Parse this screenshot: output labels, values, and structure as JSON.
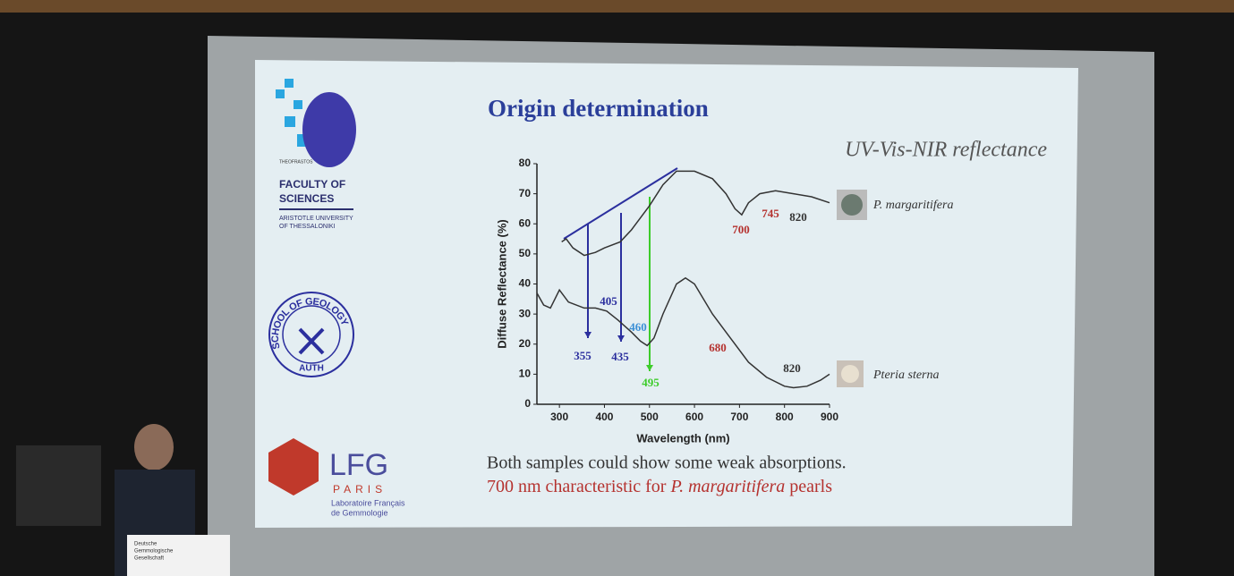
{
  "slide": {
    "title": "Origin determination",
    "subtitle": "UV-Vis-NIR reflectance",
    "auth_logo": {
      "mark": "THEOFRASTOS",
      "line1": "FACULTY OF",
      "line2": "SCIENCES",
      "line3": "ARISTOTLE UNIVERSITY",
      "line4": "OF THESSALONIKI"
    },
    "geology_logo": {
      "ring": "SCHOOL OF GEOLOGY",
      "bottom": "AUTH"
    },
    "lfg_logo": {
      "name": "LFG",
      "city": "PARIS",
      "line1": "Laboratoire Français",
      "line2": "de Gemmologie"
    },
    "caption": {
      "line1": "Both samples could show some weak absorptions.",
      "line2_start": "700 nm characteristic for ",
      "line2_italic": "P. margaritifera",
      "line2_end": " pearls"
    },
    "lectern": {
      "line1": "Deutsche",
      "line2": "Gemmologische",
      "line3": "Gesellschaft"
    }
  },
  "chart_data": {
    "type": "line",
    "xlabel": "Wavelength (nm)",
    "ylabel": "Diffuse Reflectance (%)",
    "xlim": [
      250,
      900
    ],
    "ylim": [
      0,
      80
    ],
    "xticks": [
      300,
      400,
      500,
      600,
      700,
      800,
      900
    ],
    "yticks": [
      0,
      10,
      20,
      30,
      40,
      50,
      60,
      70,
      80
    ],
    "series": [
      {
        "name": "P. margaritifera",
        "color": "#333333",
        "x": [
          305,
          315,
          330,
          355,
          380,
          400,
          435,
          460,
          500,
          530,
          560,
          600,
          640,
          670,
          690,
          705,
          720,
          745,
          780,
          820,
          860,
          900
        ],
        "values": [
          54,
          55,
          52,
          49.5,
          50.5,
          52,
          54,
          58,
          66,
          73,
          77.5,
          77.5,
          75,
          70,
          65,
          63,
          67,
          70,
          71,
          70,
          69,
          67
        ]
      },
      {
        "name": "Pteria sterna",
        "color": "#333333",
        "x": [
          250,
          265,
          280,
          300,
          320,
          355,
          380,
          405,
          430,
          460,
          480,
          495,
          510,
          530,
          560,
          580,
          600,
          640,
          680,
          720,
          760,
          800,
          820,
          850,
          880,
          900
        ],
        "values": [
          37,
          33,
          32,
          38,
          34,
          32,
          32,
          31,
          28,
          24,
          21,
          19.5,
          22,
          30,
          40,
          42,
          40,
          30,
          22,
          14,
          9,
          6,
          5.5,
          6,
          8,
          10
        ]
      }
    ],
    "annotations": [
      {
        "text": "355",
        "color": "#2b2f9e"
      },
      {
        "text": "405",
        "color": "#2b2f9e"
      },
      {
        "text": "435",
        "color": "#2b2f9e"
      },
      {
        "text": "460",
        "color": "#3a8fd6"
      },
      {
        "text": "495",
        "color": "#3dcc2b"
      },
      {
        "text": "680",
        "color": "#b5322f"
      },
      {
        "text": "700",
        "color": "#b5322f"
      },
      {
        "text": "745",
        "color": "#b5322f"
      },
      {
        "text": "820",
        "color": "#333333"
      },
      {
        "text": "820",
        "color": "#333333"
      }
    ]
  }
}
